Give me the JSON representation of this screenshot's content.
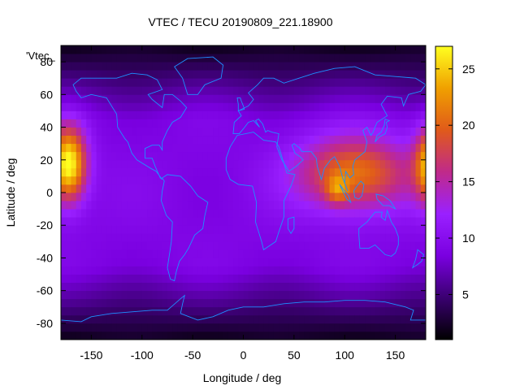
{
  "chart_data": {
    "type": "heatmap",
    "title": "VTEC / TECU 20190809_221.18900",
    "xlabel": "Longitude / deg",
    "ylabel": "Latitude / deg",
    "legend_label": "'Vtec_",
    "xlim": [
      -180,
      180
    ],
    "ylim": [
      -90,
      90
    ],
    "x_ticks": [
      -150,
      -100,
      -50,
      0,
      50,
      100,
      150
    ],
    "y_ticks": [
      -80,
      -60,
      -40,
      -20,
      0,
      20,
      40,
      60,
      80
    ],
    "colorbar": {
      "range": [
        1,
        27
      ],
      "ticks": [
        5,
        10,
        15,
        20,
        25
      ],
      "colors": [
        "#000000",
        "#3a0070",
        "#7a00e0",
        "#9a20ff",
        "#c02a8a",
        "#e05a1a",
        "#f0a000",
        "#ffff20"
      ]
    },
    "hotspots": [
      {
        "name": "East Asia / Indian Ocean band",
        "lon": 110,
        "lat": 12,
        "value": 20
      },
      {
        "name": "Western Pacific peak",
        "lon": -172,
        "lat": 18,
        "value": 25
      },
      {
        "name": "Bay of Bengal peak",
        "lon": 93,
        "lat": 2,
        "value": 24
      }
    ],
    "background_vtec": 8,
    "polar_minimum": 2
  }
}
